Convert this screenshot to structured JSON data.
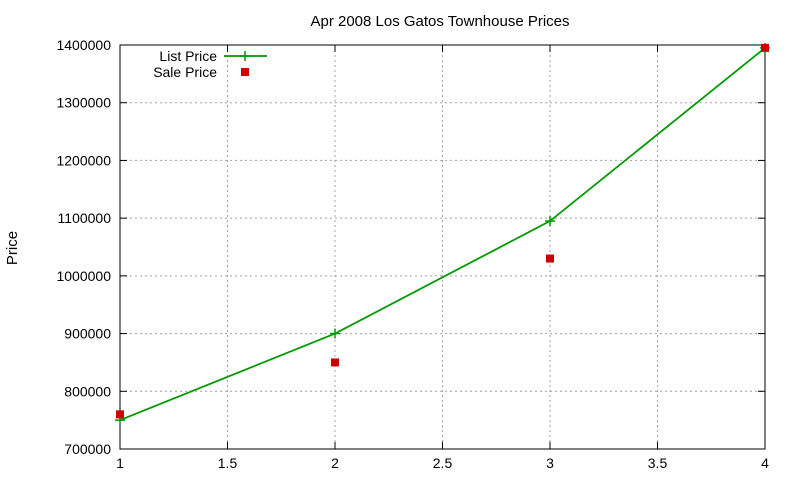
{
  "chart_data": {
    "type": "line",
    "title": "Apr 2008 Los Gatos Townhouse Prices",
    "xlabel": "",
    "ylabel": "Price",
    "xlim": [
      1,
      4
    ],
    "ylim": [
      700000,
      1400000
    ],
    "x_ticks": [
      1,
      1.5,
      2,
      2.5,
      3,
      3.5,
      4
    ],
    "y_ticks": [
      700000,
      800000,
      900000,
      1000000,
      1100000,
      1200000,
      1300000,
      1400000
    ],
    "grid": true,
    "legend_position": "top-left",
    "series": [
      {
        "name": "List Price",
        "style": "line-with-plus-markers",
        "color": "#009900",
        "x": [
          1,
          2,
          3,
          4
        ],
        "y": [
          750000,
          900000,
          1095000,
          1395000
        ]
      },
      {
        "name": "Sale Price",
        "style": "square-markers",
        "color": "#cc0000",
        "x": [
          1,
          2,
          3,
          4
        ],
        "y": [
          760000,
          850000,
          1030000,
          1395000
        ]
      }
    ]
  }
}
